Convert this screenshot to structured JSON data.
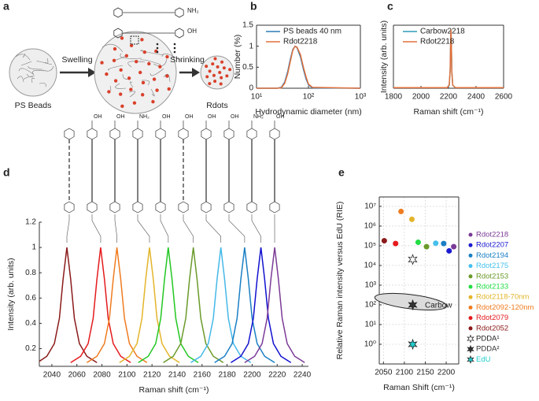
{
  "panel_a": {
    "label": "a",
    "steps": [
      "Swelling",
      "Shrinking"
    ],
    "captions": [
      "PS Beads",
      "Rdots"
    ],
    "substituents": [
      "NH₂",
      "OH"
    ]
  },
  "chart_data": [
    {
      "type": "line",
      "panel": "b",
      "xlabel": "Hydrodynamic diameter (nm)",
      "ylabel": "Number (%)",
      "xlog": true,
      "xlim": [
        10,
        1000
      ],
      "ylim": [
        0,
        1.5
      ],
      "xticks": [
        {
          "value": 10,
          "label": "10¹"
        },
        {
          "value": 100,
          "label": "10²"
        },
        {
          "value": 1000,
          "label": "10³"
        }
      ],
      "yticks": [
        0,
        0.5,
        1,
        1.5
      ],
      "legend": "upper right",
      "x": [
        10,
        25,
        30,
        35,
        40,
        45,
        50,
        55,
        60,
        70,
        80,
        90,
        100,
        120,
        1000
      ],
      "series": [
        {
          "name": "PS beads 40 nm",
          "color": "#2b7bb9",
          "values": [
            0,
            0,
            0.02,
            0.15,
            0.4,
            0.7,
            0.92,
            1.0,
            0.97,
            0.75,
            0.45,
            0.22,
            0.08,
            0.01,
            0
          ]
        },
        {
          "name": "Rdot2218",
          "color": "#e2703a",
          "values": [
            0,
            0,
            0.01,
            0.12,
            0.35,
            0.65,
            0.9,
            1.0,
            0.98,
            0.8,
            0.5,
            0.27,
            0.1,
            0.02,
            0
          ]
        }
      ]
    },
    {
      "type": "line",
      "panel": "c",
      "xlabel": "Raman shift (cm⁻¹)",
      "ylabel": "Intensity (arb. units)",
      "xlim": [
        1800,
        2600
      ],
      "ylim": [
        0,
        1.08
      ],
      "xticks": [
        1800,
        2000,
        2200,
        2400,
        2600
      ],
      "legend": "upper right",
      "x": [
        1800,
        2190,
        2205,
        2212,
        2215,
        2218,
        2221,
        2224,
        2231,
        2250,
        2600
      ],
      "series": [
        {
          "name": "Carbow2218",
          "color": "#2b9bb9",
          "values": [
            0.01,
            0.01,
            0.05,
            0.3,
            0.7,
            1.0,
            0.7,
            0.3,
            0.05,
            0.01,
            0.01
          ]
        },
        {
          "name": "Rdot2218",
          "color": "#e2703a",
          "values": [
            0.01,
            0.01,
            0.06,
            0.32,
            0.72,
            1.0,
            0.68,
            0.28,
            0.05,
            0.01,
            0.01
          ]
        }
      ]
    },
    {
      "type": "line",
      "panel": "d",
      "xlabel": "Raman shift (cm⁻¹)",
      "ylabel": "Intensity (arb. units)",
      "xlim": [
        2030,
        2245
      ],
      "ylim": [
        0.06,
        1.2
      ],
      "xticks": [
        2040,
        2060,
        2080,
        2100,
        2120,
        2140,
        2160,
        2180,
        2200,
        2220,
        2240
      ],
      "yticks": [
        0.2,
        0.4,
        0.6,
        0.8,
        1,
        1.2
      ],
      "structure_labels": [
        "OH",
        "OH",
        "NH₂",
        "OH",
        "OH",
        "OH",
        "OH",
        "NH₂",
        "OH"
      ],
      "series": [
        {
          "color": "#8b1a1a",
          "x": [
            2030,
            2036,
            2042,
            2046,
            2049,
            2052,
            2055,
            2058,
            2062,
            2068,
            2076
          ],
          "values": [
            0.1,
            0.14,
            0.24,
            0.44,
            0.75,
            1,
            0.75,
            0.44,
            0.24,
            0.14,
            0.09
          ]
        },
        {
          "color": "#e41a1c",
          "x": [
            2055,
            2063,
            2069,
            2073,
            2076,
            2079,
            2082,
            2085,
            2089,
            2095,
            2103
          ],
          "values": [
            0.09,
            0.14,
            0.24,
            0.44,
            0.75,
            1,
            0.75,
            0.44,
            0.24,
            0.14,
            0.09
          ]
        },
        {
          "color": "#f07b1f",
          "x": [
            2068,
            2076,
            2082,
            2086,
            2089,
            2092,
            2095,
            2098,
            2102,
            2108,
            2116
          ],
          "values": [
            0.09,
            0.14,
            0.24,
            0.44,
            0.75,
            1,
            0.75,
            0.44,
            0.24,
            0.14,
            0.09
          ]
        },
        {
          "color": "#e3b52a",
          "x": [
            2094,
            2102,
            2108,
            2112,
            2115,
            2118,
            2121,
            2124,
            2128,
            2134,
            2142
          ],
          "values": [
            0.09,
            0.14,
            0.24,
            0.44,
            0.75,
            1,
            0.75,
            0.44,
            0.24,
            0.14,
            0.09
          ]
        },
        {
          "color": "#22c722",
          "x": [
            2109,
            2117,
            2123,
            2127,
            2130,
            2133,
            2136,
            2139,
            2143,
            2149,
            2157
          ],
          "values": [
            0.09,
            0.14,
            0.24,
            0.44,
            0.75,
            1,
            0.75,
            0.44,
            0.24,
            0.14,
            0.09
          ]
        },
        {
          "color": "#6a9a2a",
          "x": [
            2129,
            2137,
            2143,
            2147,
            2150,
            2153,
            2156,
            2159,
            2163,
            2169,
            2177
          ],
          "values": [
            0.09,
            0.14,
            0.24,
            0.44,
            0.75,
            1,
            0.75,
            0.44,
            0.24,
            0.14,
            0.09
          ]
        },
        {
          "color": "#44b8e8",
          "x": [
            2151,
            2159,
            2165,
            2169,
            2172,
            2175,
            2178,
            2181,
            2185,
            2191,
            2199
          ],
          "values": [
            0.09,
            0.14,
            0.24,
            0.44,
            0.75,
            1,
            0.75,
            0.44,
            0.24,
            0.14,
            0.09
          ]
        },
        {
          "color": "#1a7fc4",
          "x": [
            2170,
            2178,
            2184,
            2188,
            2191,
            2194,
            2197,
            2200,
            2204,
            2210,
            2218
          ],
          "values": [
            0.09,
            0.14,
            0.24,
            0.44,
            0.75,
            1,
            0.75,
            0.44,
            0.24,
            0.14,
            0.09
          ]
        },
        {
          "color": "#1010d0",
          "x": [
            2183,
            2191,
            2197,
            2201,
            2204,
            2207,
            2210,
            2213,
            2217,
            2223,
            2231
          ],
          "values": [
            0.09,
            0.14,
            0.24,
            0.44,
            0.75,
            1,
            0.75,
            0.44,
            0.24,
            0.14,
            0.09
          ]
        },
        {
          "color": "#7b3a96",
          "x": [
            2194,
            2202,
            2208,
            2212,
            2215,
            2218,
            2221,
            2224,
            2228,
            2234,
            2242
          ],
          "values": [
            0.09,
            0.14,
            0.24,
            0.44,
            0.75,
            1,
            0.75,
            0.44,
            0.24,
            0.14,
            0.09
          ]
        }
      ]
    },
    {
      "type": "scatter",
      "panel": "e",
      "xlabel": "Raman Shift (cm⁻¹)",
      "ylabel": "Relative Raman intensity versus EdU (RIE)",
      "ylog": true,
      "grid": true,
      "legend": "right",
      "annotation": "Carbow",
      "xlim": [
        2040,
        2230
      ],
      "ylim": [
        0.1,
        30000000
      ],
      "xticks": [
        2050,
        2100,
        2150,
        2200
      ],
      "yticks": [
        {
          "value": 1,
          "label": "10⁰"
        },
        {
          "value": 10,
          "label": "10¹"
        },
        {
          "value": 100,
          "label": "10²"
        },
        {
          "value": 1000,
          "label": "10³"
        },
        {
          "value": 10000,
          "label": "10⁴"
        },
        {
          "value": 100000,
          "label": "10⁵"
        },
        {
          "value": 1000000,
          "label": "10⁶"
        },
        {
          "value": 10000000,
          "label": "10⁷"
        }
      ],
      "series": [
        {
          "name": "Rdot2218",
          "color": "#7b3a96",
          "marker": "circle",
          "x": [
            2218
          ],
          "values": [
            90000
          ]
        },
        {
          "name": "Rdot2207",
          "color": "#1a1ad0",
          "marker": "circle",
          "x": [
            2207
          ],
          "values": [
            55000
          ]
        },
        {
          "name": "Rdot2194",
          "color": "#1a7fc4",
          "marker": "circle",
          "x": [
            2194
          ],
          "values": [
            130000
          ]
        },
        {
          "name": "Rdot2175",
          "color": "#44c0ee",
          "marker": "circle",
          "x": [
            2175
          ],
          "values": [
            135000
          ]
        },
        {
          "name": "Rdot2153",
          "color": "#6a9a2a",
          "marker": "circle",
          "x": [
            2153
          ],
          "values": [
            90000
          ]
        },
        {
          "name": "Rdot2133",
          "color": "#22dd44",
          "marker": "circle",
          "x": [
            2133
          ],
          "values": [
            150000
          ]
        },
        {
          "name": "Rdot2118-70nm",
          "color": "#e3b52a",
          "marker": "circle",
          "x": [
            2118
          ],
          "values": [
            2200000
          ]
        },
        {
          "name": "Rdot2092-120nm",
          "color": "#f07b1f",
          "marker": "circle",
          "x": [
            2092
          ],
          "values": [
            5500000
          ]
        },
        {
          "name": "Rdot2079",
          "color": "#e41a1c",
          "marker": "circle",
          "x": [
            2079
          ],
          "values": [
            130000
          ]
        },
        {
          "name": "Rdot2052",
          "color": "#8b1a1a",
          "marker": "circle",
          "x": [
            2052
          ],
          "values": [
            180000
          ]
        },
        {
          "name": "PDDA¹",
          "color": "#222222",
          "marker": "star",
          "hollow": true,
          "x": [
            2120
          ],
          "values": [
            20000
          ]
        },
        {
          "name": "PDDA²",
          "color": "#333333",
          "marker": "star",
          "x": [
            2120
          ],
          "values": [
            100
          ]
        },
        {
          "name": "EdU",
          "color": "#22cccc",
          "marker": "star",
          "x": [
            2120
          ],
          "values": [
            1
          ]
        }
      ]
    }
  ]
}
